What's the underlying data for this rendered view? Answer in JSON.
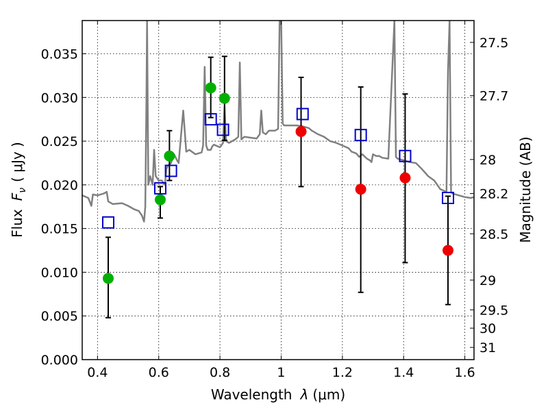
{
  "chart_data": {
    "type": "scatter",
    "title": "",
    "xlabel_prefix": "Wavelength",
    "xlabel_var": "λ",
    "xlabel_unit": "(μm)",
    "ylabel_prefix": "Flux",
    "ylabel_var": "F",
    "ylabel_sub": "ν",
    "ylabel_unit": "( μJy )",
    "y2label": "Magnitude (AB)",
    "xlim": [
      0.35,
      1.63
    ],
    "ylim": [
      0.0,
      0.0388
    ],
    "grid": true,
    "x_ticks": [
      0.4,
      0.6,
      0.8,
      1.0,
      1.2,
      1.4,
      1.6
    ],
    "x_tick_labels": [
      "0.4",
      "0.6",
      "0.8",
      "1",
      "1.2",
      "1.4",
      "1.6"
    ],
    "y_ticks": [
      0.0,
      0.005,
      0.01,
      0.015,
      0.02,
      0.025,
      0.03,
      0.035
    ],
    "y_tick_labels": [
      "0.000",
      "0.005",
      "0.010",
      "0.015",
      "0.020",
      "0.025",
      "0.030",
      "0.035"
    ],
    "y2_ticks": [
      {
        "label": "27.5",
        "flux": 0.0363
      },
      {
        "label": "27.7",
        "flux": 0.0302
      },
      {
        "label": "28",
        "flux": 0.0229
      },
      {
        "label": "28.2",
        "flux": 0.019
      },
      {
        "label": "28.5",
        "flux": 0.0144
      },
      {
        "label": "29",
        "flux": 0.0091
      },
      {
        "label": "29.5",
        "flux": 0.0057
      },
      {
        "label": "30",
        "flux": 0.0036
      },
      {
        "label": "31",
        "flux": 0.0014
      }
    ],
    "colors": {
      "model": "#808080",
      "green_points": "#00b000",
      "red_points": "#ee0000",
      "blue_squares": "#0000cc",
      "error_bars": "#000000",
      "grid": "#000000"
    },
    "series": [
      {
        "kind": "model_spectrum",
        "points": [
          [
            0.35,
            0.0188
          ],
          [
            0.37,
            0.0185
          ],
          [
            0.38,
            0.0176
          ],
          [
            0.385,
            0.0189
          ],
          [
            0.4,
            0.0188
          ],
          [
            0.42,
            0.019
          ],
          [
            0.43,
            0.0192
          ],
          [
            0.435,
            0.0181
          ],
          [
            0.45,
            0.0178
          ],
          [
            0.48,
            0.0179
          ],
          [
            0.5,
            0.0176
          ],
          [
            0.52,
            0.0172
          ],
          [
            0.535,
            0.017
          ],
          [
            0.545,
            0.0165
          ],
          [
            0.552,
            0.0158
          ],
          [
            0.556,
            0.0175
          ],
          [
            0.56,
            0.03
          ],
          [
            0.562,
            0.0388
          ],
          [
            0.566,
            0.02
          ],
          [
            0.572,
            0.021
          ],
          [
            0.58,
            0.02
          ],
          [
            0.585,
            0.024
          ],
          [
            0.59,
            0.021
          ],
          [
            0.6,
            0.0205
          ],
          [
            0.61,
            0.0205
          ],
          [
            0.62,
            0.02
          ],
          [
            0.625,
            0.0218
          ],
          [
            0.63,
            0.0222
          ],
          [
            0.64,
            0.0225
          ],
          [
            0.65,
            0.0235
          ],
          [
            0.66,
            0.0228
          ],
          [
            0.665,
            0.0225
          ],
          [
            0.67,
            0.0245
          ],
          [
            0.68,
            0.0285
          ],
          [
            0.69,
            0.0238
          ],
          [
            0.7,
            0.024
          ],
          [
            0.72,
            0.0235
          ],
          [
            0.74,
            0.0237
          ],
          [
            0.745,
            0.0245
          ],
          [
            0.75,
            0.0335
          ],
          [
            0.755,
            0.0245
          ],
          [
            0.76,
            0.024
          ],
          [
            0.77,
            0.024
          ],
          [
            0.775,
            0.0244
          ],
          [
            0.78,
            0.0246
          ],
          [
            0.8,
            0.0243
          ],
          [
            0.81,
            0.0248
          ],
          [
            0.815,
            0.029
          ],
          [
            0.82,
            0.025
          ],
          [
            0.83,
            0.0248
          ],
          [
            0.85,
            0.0252
          ],
          [
            0.86,
            0.0255
          ],
          [
            0.865,
            0.034
          ],
          [
            0.87,
            0.0252
          ],
          [
            0.88,
            0.0255
          ],
          [
            0.9,
            0.0254
          ],
          [
            0.92,
            0.0253
          ],
          [
            0.93,
            0.0258
          ],
          [
            0.935,
            0.0285
          ],
          [
            0.94,
            0.026
          ],
          [
            0.95,
            0.0258
          ],
          [
            0.96,
            0.0262
          ],
          [
            0.97,
            0.0262
          ],
          [
            0.98,
            0.0262
          ],
          [
            0.99,
            0.0264
          ],
          [
            0.995,
            0.0388
          ],
          [
            1.0,
            0.0388
          ],
          [
            1.005,
            0.027
          ],
          [
            1.01,
            0.0268
          ],
          [
            1.03,
            0.0268
          ],
          [
            1.05,
            0.0268
          ],
          [
            1.07,
            0.0267
          ],
          [
            1.09,
            0.0265
          ],
          [
            1.1,
            0.0262
          ],
          [
            1.12,
            0.0258
          ],
          [
            1.14,
            0.0255
          ],
          [
            1.16,
            0.025
          ],
          [
            1.18,
            0.0248
          ],
          [
            1.2,
            0.0245
          ],
          [
            1.22,
            0.0242
          ],
          [
            1.23,
            0.0238
          ],
          [
            1.245,
            0.0236
          ],
          [
            1.255,
            0.0232
          ],
          [
            1.265,
            0.0235
          ],
          [
            1.28,
            0.023
          ],
          [
            1.29,
            0.0228
          ],
          [
            1.295,
            0.0226
          ],
          [
            1.3,
            0.0235
          ],
          [
            1.31,
            0.0233
          ],
          [
            1.32,
            0.0233
          ],
          [
            1.33,
            0.0231
          ],
          [
            1.35,
            0.023
          ],
          [
            1.37,
            0.0388
          ],
          [
            1.375,
            0.0232
          ],
          [
            1.38,
            0.023
          ],
          [
            1.4,
            0.0228
          ],
          [
            1.42,
            0.0226
          ],
          [
            1.44,
            0.0225
          ],
          [
            1.46,
            0.0218
          ],
          [
            1.48,
            0.021
          ],
          [
            1.5,
            0.0205
          ],
          [
            1.52,
            0.0195
          ],
          [
            1.54,
            0.0192
          ],
          [
            1.545,
            0.033
          ],
          [
            1.55,
            0.0388
          ],
          [
            1.555,
            0.0192
          ],
          [
            1.56,
            0.019
          ],
          [
            1.58,
            0.0188
          ],
          [
            1.6,
            0.0186
          ],
          [
            1.62,
            0.0185
          ],
          [
            1.63,
            0.0186
          ]
        ]
      },
      {
        "kind": "green_circles",
        "points": [
          {
            "x": 0.435,
            "y": 0.0093,
            "err_low": 0.0048,
            "err_high": 0.014
          },
          {
            "x": 0.605,
            "y": 0.0183,
            "err_low": 0.0162,
            "err_high": 0.0198
          },
          {
            "x": 0.635,
            "y": 0.0233,
            "err_low": 0.0205,
            "err_high": 0.0262
          },
          {
            "x": 0.77,
            "y": 0.0311,
            "err_low": 0.0277,
            "err_high": 0.0346
          },
          {
            "x": 0.815,
            "y": 0.0299,
            "err_low": 0.0251,
            "err_high": 0.0347
          }
        ]
      },
      {
        "kind": "red_circles",
        "points": [
          {
            "x": 1.065,
            "y": 0.0261,
            "err_low": 0.0198,
            "err_high": 0.0323
          },
          {
            "x": 1.26,
            "y": 0.0195,
            "err_low": 0.0077,
            "err_high": 0.0312
          },
          {
            "x": 1.405,
            "y": 0.0208,
            "err_low": 0.0111,
            "err_high": 0.0304
          },
          {
            "x": 1.545,
            "y": 0.0125,
            "err_low": 0.0063,
            "err_high": 0.0187
          }
        ]
      },
      {
        "kind": "blue_squares",
        "points": [
          {
            "x": 0.435,
            "y": 0.0157
          },
          {
            "x": 0.605,
            "y": 0.0196
          },
          {
            "x": 0.64,
            "y": 0.0216
          },
          {
            "x": 0.77,
            "y": 0.0275
          },
          {
            "x": 0.81,
            "y": 0.0263
          },
          {
            "x": 1.07,
            "y": 0.0281
          },
          {
            "x": 1.26,
            "y": 0.0257
          },
          {
            "x": 1.405,
            "y": 0.0233
          },
          {
            "x": 1.545,
            "y": 0.0185
          }
        ]
      }
    ]
  }
}
